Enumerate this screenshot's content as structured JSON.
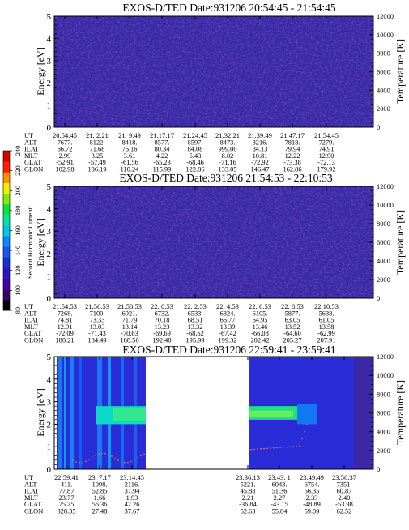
{
  "chart_data": [
    {
      "type": "heatmap",
      "title": "EXOS-D/TED   Date:931206   20:54:45 - 21:54:45",
      "ylabel": "Energy [eV]",
      "y2label": "Temperature [K]",
      "ylim": [
        0,
        5
      ],
      "y2lim": [
        0,
        12000
      ],
      "yticks": [
        0,
        1,
        2,
        3,
        4,
        5
      ],
      "y2ticks": [
        0,
        2000,
        4000,
        6000,
        8000,
        10000,
        12000
      ],
      "time_table": {
        "row_labels": [
          "UT",
          "ALT",
          "ILAT",
          "MLT",
          "GLAT",
          "GLON"
        ],
        "columns": [
          [
            "20:54:45",
            "7677.",
            "66.72",
            "2.99",
            "-52.91",
            "102.98"
          ],
          [
            "21: 2:21",
            "8122.",
            "71.68",
            "3.25",
            "-57.49",
            "106.19"
          ],
          [
            "21: 9:49",
            "8418.",
            "76.16",
            "3.61",
            "-61.56",
            "110.24"
          ],
          [
            "21:17:17",
            "8577.",
            "80.34",
            "4.22",
            "-65.23",
            "115.99"
          ],
          [
            "21:24:45",
            "8597.",
            "84.08",
            "5.43",
            "-68.46",
            "122.86"
          ],
          [
            "21:32:21",
            "8473.",
            "999.00",
            "8.02",
            "-71.16",
            "133.05"
          ],
          [
            "21:39:49",
            "8216.",
            "84.13",
            "10.81",
            "-72.92",
            "146.47"
          ],
          [
            "21:47:17",
            "7818.",
            "79.94",
            "12.22",
            "-73.38",
            "162.86"
          ],
          [
            "21:54:45",
            "7279.",
            "74.91",
            "12.90",
            "-72.13",
            "179.92"
          ]
        ]
      }
    },
    {
      "type": "heatmap",
      "title": "EXOS-D/TED   Date:931206   21:54:53 - 22:10:53",
      "ylabel": "Energy [eV]",
      "y2label": "Temperature [K]",
      "ylim": [
        0,
        5
      ],
      "y2lim": [
        0,
        12000
      ],
      "yticks": [
        0,
        1,
        2,
        3,
        4,
        5
      ],
      "y2ticks": [
        0,
        2000,
        4000,
        6000,
        8000,
        10000,
        12000
      ],
      "time_table": {
        "row_labels": [
          "UT",
          "ALT",
          "ILAT",
          "MLT",
          "GLAT",
          "GLON"
        ],
        "columns": [
          [
            "21:54:53",
            "7268.",
            "74.81",
            "12.91",
            "-72.09",
            "180.21"
          ],
          [
            "21:56:53",
            "7100.",
            "73.33",
            "13.03",
            "-71.43",
            "184.49"
          ],
          [
            "21:58:53",
            "6921.",
            "71.79",
            "13.14",
            "-70.63",
            "188.56"
          ],
          [
            "22: 0:53",
            "6732.",
            "70.18",
            "13.23",
            "-69.69",
            "192.40"
          ],
          [
            "22: 2:53",
            "6533.",
            "68.51",
            "13.32",
            "-68.62",
            "195.99"
          ],
          [
            "22: 4:53",
            "6324.",
            "66.77",
            "13.39",
            "-67.42",
            "199.32"
          ],
          [
            "22: 6:53",
            "6105.",
            "64.95",
            "13.46",
            "-66.08",
            "202.42"
          ],
          [
            "22: 8:53",
            "5877.",
            "63.05",
            "13.52",
            "-64.60",
            "205.27"
          ],
          [
            "22:10:53",
            "5638.",
            "61.05",
            "13.58",
            "-62.99",
            "207.91"
          ]
        ]
      }
    },
    {
      "type": "heatmap",
      "title": "EXOS-D/TED   Date:931206   22:59:41 - 23:59:41",
      "ylabel": "Energy [eV]",
      "y2label": "Temperature [K]",
      "ylim": [
        0,
        5
      ],
      "y2lim": [
        0,
        12000
      ],
      "yticks": [
        0,
        1,
        2,
        3,
        4,
        5
      ],
      "y2ticks": [
        0,
        2000,
        4000,
        6000,
        8000,
        10000,
        12000
      ],
      "time_table": {
        "row_labels": [
          "UT",
          "ALT",
          "ILAT",
          "MLT",
          "GLAT",
          "GLON"
        ],
        "columns": [
          [
            "22:59:41",
            "411.",
            "77.87",
            "23.77",
            "75.25",
            "328.35"
          ],
          [
            "23: 7:17",
            "1098.",
            "52.85",
            "1.66",
            "56.36",
            "27.48"
          ],
          [
            "23:14:45",
            "2116.",
            "37.94",
            "1.93",
            "42.26",
            "37.67"
          ],
          [
            "23:36:13",
            "5221.",
            "45.88",
            "2.21",
            "-36.84",
            "52.63"
          ],
          [
            "23:43: 1",
            "6043.",
            "51.36",
            "2.27",
            "-43.15",
            "55.84"
          ],
          [
            "23:49:49",
            "6754.",
            "56.35",
            "2.33",
            "-48.89",
            "59.09"
          ],
          [
            "23:56:37",
            "7351.",
            "60.87",
            "2.40",
            "-53.98",
            "62.52"
          ]
        ]
      },
      "data_gap": [
        "23:14:45",
        "23:36:13"
      ],
      "features": [
        {
          "segment": "before_gap",
          "energy_band_eV": [
            2.0,
            2.8
          ],
          "level_approx": 180
        },
        {
          "segment": "after_gap",
          "energy_band_eV": [
            2.2,
            2.8
          ],
          "level_approx": 190
        },
        {
          "segment": "all",
          "description": "temperature dots 1000-3000 K"
        }
      ]
    }
  ],
  "colorbar": {
    "label": "Second Harmonic Current",
    "ticks": [
      "80",
      "100",
      "120",
      "140",
      "160",
      "180",
      "200",
      "220",
      "240"
    ],
    "colors": [
      "#000000",
      "#3a0066",
      "#4400aa",
      "#3311cc",
      "#1a2ed8",
      "#1a55f0",
      "#0a8aff",
      "#00c8e6",
      "#00e6a0",
      "#00e640",
      "#80f000",
      "#f2f000",
      "#ff9000",
      "#ff2000",
      "#dd0000"
    ]
  }
}
